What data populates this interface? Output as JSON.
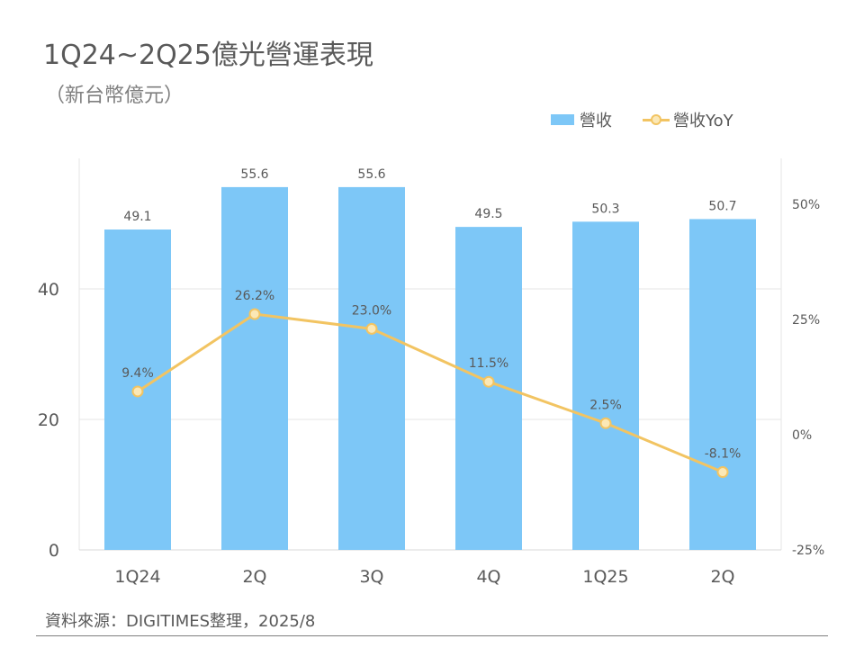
{
  "header": {
    "title": "1Q24~2Q25億光營運表現",
    "subtitle": "（新台幣億元）"
  },
  "legend": {
    "bar_label": "營收",
    "line_label": "營收YoY"
  },
  "footer": {
    "source": "資料來源：DIGITIMES整理，2025/8"
  },
  "colors": {
    "bar": "#7dc7f7",
    "line": "#f2c462",
    "marker_fill": "#fbe8b6",
    "grid": "#e6e6e6"
  },
  "chart_data": {
    "type": "bar+line",
    "categories": [
      "1Q24",
      "2Q",
      "3Q",
      "4Q",
      "1Q25",
      "2Q"
    ],
    "series": [
      {
        "name": "營收",
        "type": "bar",
        "axis": "left",
        "values": [
          49.1,
          55.6,
          55.6,
          49.5,
          50.3,
          50.7
        ],
        "labels": [
          "49.1",
          "55.6",
          "55.6",
          "49.5",
          "50.3",
          "50.7"
        ]
      },
      {
        "name": "營收YoY",
        "type": "line",
        "axis": "right",
        "values": [
          9.4,
          26.2,
          23.0,
          11.5,
          2.5,
          -8.1
        ],
        "labels": [
          "9.4%",
          "26.2%",
          "23.0%",
          "11.5%",
          "2.5%",
          "-8.1%"
        ]
      }
    ],
    "y_left": {
      "range": [
        0,
        60
      ],
      "ticks": [
        0,
        20,
        40
      ],
      "tick_labels": [
        "0",
        "20",
        "40"
      ]
    },
    "y_right": {
      "range": [
        -25,
        60
      ],
      "ticks": [
        -25,
        0,
        25,
        50
      ],
      "tick_labels": [
        "-25%",
        "0%",
        "25%",
        "50%"
      ]
    },
    "grid": true,
    "legend_position": "top-right"
  }
}
